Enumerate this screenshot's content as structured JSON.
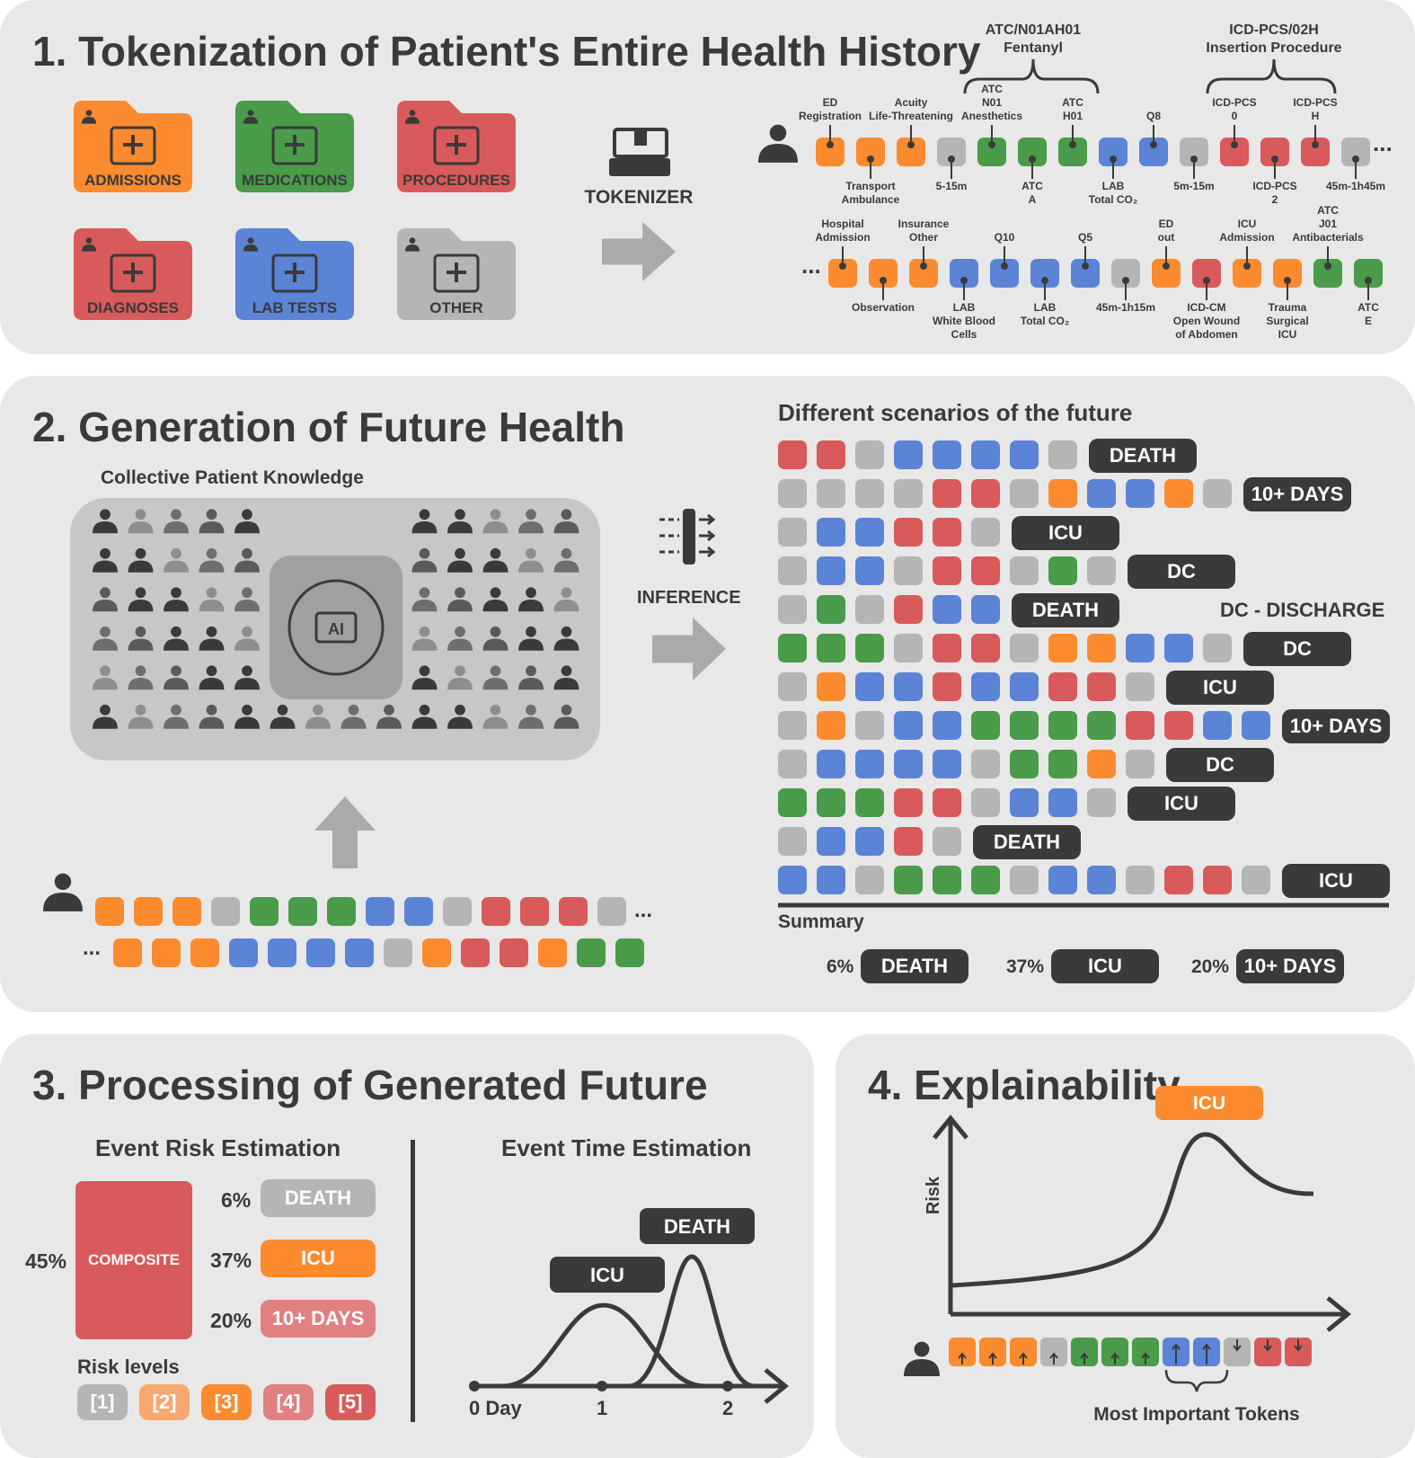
{
  "colors": {
    "orange": "#fb8b2e",
    "green": "#4a9b4a",
    "red": "#d95a5a",
    "blue": "#5b84d6",
    "gray": "#b5b5b5",
    "dark": "#3a3a3a",
    "panel": "#e8e8e8"
  },
  "panel1": {
    "number": "1.",
    "title": "Tokenization of Patient's Entire Health History",
    "folders": [
      {
        "label": "ADMISSIONS",
        "color": "orange",
        "icon": "hospital-icon"
      },
      {
        "label": "MEDICATIONS",
        "color": "green",
        "icon": "pills-icon"
      },
      {
        "label": "PROCEDURES",
        "color": "red",
        "icon": "surgery-icon"
      },
      {
        "label": "DIAGNOSES",
        "color": "red",
        "icon": "lungs-icon"
      },
      {
        "label": "LAB TESTS",
        "color": "blue",
        "icon": "test-tube-icon"
      },
      {
        "label": "OTHER",
        "color": "gray",
        "icon": "medical-record-icon"
      }
    ],
    "tokenizer_label": "TOKENIZER",
    "braces": [
      {
        "line1": "ATC/N01AH01",
        "line2": "Fentanyl"
      },
      {
        "line1": "ICD-PCS/02H",
        "line2": "Insertion Procedure"
      }
    ],
    "row1": [
      {
        "color": "orange",
        "side": "top",
        "lines": [
          "ED",
          "Registration"
        ]
      },
      {
        "color": "orange",
        "side": "bottom",
        "lines": [
          "Transport",
          "Ambulance"
        ]
      },
      {
        "color": "orange",
        "side": "top",
        "lines": [
          "Acuity",
          "Life-Threatening"
        ]
      },
      {
        "color": "gray",
        "side": "bottom",
        "lines": [
          "5-15m"
        ]
      },
      {
        "color": "green",
        "side": "top",
        "lines": [
          "ATC",
          "N01",
          "Anesthetics"
        ]
      },
      {
        "color": "green",
        "side": "bottom",
        "lines": [
          "ATC",
          "A"
        ]
      },
      {
        "color": "green",
        "side": "top",
        "lines": [
          "ATC",
          "H01"
        ]
      },
      {
        "color": "blue",
        "side": "bottom",
        "lines": [
          "LAB",
          "Total CO₂"
        ]
      },
      {
        "color": "blue",
        "side": "top",
        "lines": [
          "Q8"
        ]
      },
      {
        "color": "gray",
        "side": "bottom",
        "lines": [
          "5m-15m"
        ]
      },
      {
        "color": "red",
        "side": "top",
        "lines": [
          "ICD-PCS",
          "0"
        ]
      },
      {
        "color": "red",
        "side": "bottom",
        "lines": [
          "ICD-PCS",
          "2"
        ]
      },
      {
        "color": "red",
        "side": "top",
        "lines": [
          "ICD-PCS",
          "H"
        ]
      },
      {
        "color": "gray",
        "side": "bottom",
        "lines": [
          "45m-1h45m"
        ]
      }
    ],
    "row2": [
      {
        "color": "orange",
        "side": "top",
        "lines": [
          "Hospital",
          "Admission"
        ]
      },
      {
        "color": "orange",
        "side": "bottom",
        "lines": [
          "Observation"
        ]
      },
      {
        "color": "orange",
        "side": "top",
        "lines": [
          "Insurance",
          "Other"
        ]
      },
      {
        "color": "blue",
        "side": "bottom",
        "lines": [
          "LAB",
          "White Blood",
          "Cells"
        ]
      },
      {
        "color": "blue",
        "side": "top",
        "lines": [
          "Q10"
        ]
      },
      {
        "color": "blue",
        "side": "bottom",
        "lines": [
          "LAB",
          "Total CO₂"
        ]
      },
      {
        "color": "blue",
        "side": "top",
        "lines": [
          "Q5"
        ]
      },
      {
        "color": "gray",
        "side": "bottom",
        "lines": [
          "45m-1h15m"
        ]
      },
      {
        "color": "orange",
        "side": "top",
        "lines": [
          "ED",
          "out"
        ]
      },
      {
        "color": "red",
        "side": "bottom",
        "lines": [
          "ICD-CM",
          "Open Wound",
          "of Abdomen"
        ]
      },
      {
        "color": "orange",
        "side": "top",
        "lines": [
          "ICU",
          "Admission"
        ]
      },
      {
        "color": "orange",
        "side": "bottom",
        "lines": [
          "Trauma",
          "Surgical",
          "ICU"
        ]
      },
      {
        "color": "green",
        "side": "top",
        "lines": [
          "ATC",
          "J01",
          "Antibacterials"
        ]
      },
      {
        "color": "green",
        "side": "bottom",
        "lines": [
          "ATC",
          "E"
        ]
      }
    ],
    "ellipsis": "..."
  },
  "panel2": {
    "number": "2.",
    "title": "Generation of Future Health",
    "knowledge_label": "Collective Patient Knowledge",
    "ai_label": "AI",
    "inference_label": "INFERENCE",
    "scenarios_title": "Different scenarios of the future",
    "legend": "DC - DISCHARGE",
    "scenarios": [
      {
        "tokens": "RRGBBBBG",
        "outcome": "DEATH"
      },
      {
        "tokens": "GGGGRRGOBBOG",
        "outcome": "10+ DAYS"
      },
      {
        "tokens": "GBBRRG",
        "outcome": "ICU"
      },
      {
        "tokens": "GBBGRRGNG",
        "outcome": "DC"
      },
      {
        "tokens": "GNGRBB",
        "outcome": "DEATH"
      },
      {
        "tokens": "NNNGRRGOOBBG",
        "outcome": "DC"
      },
      {
        "tokens": "GOBBRBBRRG",
        "outcome": "ICU"
      },
      {
        "tokens": "GOGBBNNNNRRBB",
        "outcome": "10+ DAYS"
      },
      {
        "tokens": "GBBBBGNNOG",
        "outcome": "DC"
      },
      {
        "tokens": "NNNRRGBBG",
        "outcome": "ICU"
      },
      {
        "tokens": "GBBRG",
        "outcome": "DEATH"
      },
      {
        "tokens": "BBGNNNGBBGRRG",
        "outcome": "ICU"
      }
    ],
    "summary_title": "Summary",
    "summary": [
      {
        "pct": "6%",
        "label": "DEATH"
      },
      {
        "pct": "37%",
        "label": "ICU"
      },
      {
        "pct": "20%",
        "label": "10+ DAYS"
      }
    ],
    "patient_seq1": "OOOGNNNBBGRRRG",
    "patient_seq2": "OOOBBBBGORRONN",
    "ellipsis": "..."
  },
  "panel3": {
    "number": "3.",
    "title": "Processing of Generated Future",
    "risk_title": "Event Risk Estimation",
    "composite_pct": "45%",
    "composite_label": "COMPOSITE",
    "risks": [
      {
        "pct": "6%",
        "label": "DEATH",
        "color": "#b5b5b5"
      },
      {
        "pct": "37%",
        "label": "ICU",
        "color": "#fb8b2e"
      },
      {
        "pct": "20%",
        "label": "10+ DAYS",
        "color": "#e08080"
      }
    ],
    "levels_title": "Risk levels",
    "levels": [
      {
        "label": "[1]",
        "color": "#b5b5b5"
      },
      {
        "label": "[2]",
        "color": "#f7a870"
      },
      {
        "label": "[3]",
        "color": "#fb8b2e"
      },
      {
        "label": "[4]",
        "color": "#e08080"
      },
      {
        "label": "[5]",
        "color": "#d95a5a"
      }
    ],
    "time_title": "Event Time Estimation",
    "curve_labels": [
      "ICU",
      "DEATH"
    ],
    "ticks": [
      "0 Day",
      "1",
      "2"
    ]
  },
  "panel4": {
    "number": "4.",
    "title": "Explainability",
    "y_label": "Risk",
    "peak_label": "ICU",
    "tokens": [
      {
        "c": "orange",
        "d": "up"
      },
      {
        "c": "orange",
        "d": "up"
      },
      {
        "c": "orange",
        "d": "up"
      },
      {
        "c": "gray",
        "d": "up"
      },
      {
        "c": "green",
        "d": "up"
      },
      {
        "c": "green",
        "d": "up"
      },
      {
        "c": "green",
        "d": "up"
      },
      {
        "c": "blue",
        "d": "up"
      },
      {
        "c": "blue",
        "d": "up"
      },
      {
        "c": "gray",
        "d": "down"
      },
      {
        "c": "red",
        "d": "down"
      },
      {
        "c": "red",
        "d": "down"
      }
    ],
    "important_label": "Most Important Tokens"
  }
}
